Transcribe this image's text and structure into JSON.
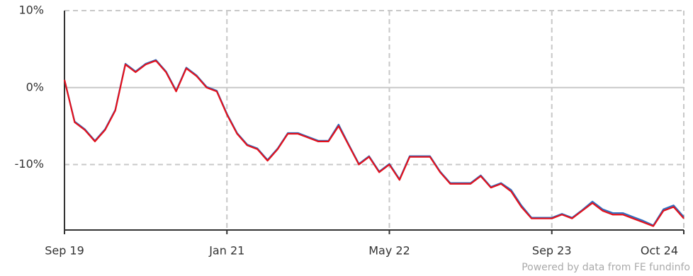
{
  "chart_data": {
    "type": "line",
    "categories": [
      "Sep 19",
      null,
      null,
      null,
      null,
      null,
      null,
      null,
      null,
      null,
      null,
      null,
      null,
      null,
      null,
      null,
      "Jan 21",
      null,
      null,
      null,
      null,
      null,
      null,
      null,
      null,
      null,
      null,
      null,
      null,
      null,
      null,
      null,
      "May 22",
      null,
      null,
      null,
      null,
      null,
      null,
      null,
      null,
      null,
      null,
      null,
      null,
      null,
      null,
      null,
      "Sep 23",
      null,
      null,
      null,
      null,
      null,
      null,
      null,
      null,
      null,
      null,
      null,
      null,
      "Oct 24"
    ],
    "series": [
      {
        "color": "#2f6fc0",
        "values": [
          1,
          -4.4,
          -5.4,
          -6.9,
          -5.4,
          -2.9,
          3.1,
          2.1,
          3.1,
          3.6,
          2.1,
          -0.4,
          2.6,
          1.6,
          0.1,
          -0.4,
          -3.4,
          -5.9,
          -7.4,
          -7.9,
          -9.4,
          -7.9,
          -5.9,
          -5.9,
          -6.4,
          -6.9,
          -6.9,
          -4.8,
          -7.4,
          -9.9,
          -8.9,
          -10.9,
          -9.9,
          -11.9,
          -8.9,
          -8.9,
          -8.9,
          -10.9,
          -12.4,
          -12.4,
          -12.4,
          -11.4,
          -12.9,
          -12.4,
          -13.3,
          -15.3,
          -16.9,
          -16.9,
          -16.9,
          -16.4,
          -16.9,
          -15.9,
          -14.8,
          -15.8,
          -16.3,
          -16.3,
          -16.8,
          -17.3,
          -17.9,
          -15.8,
          -15.3,
          -16.8
        ]
      },
      {
        "color": "#e3101b",
        "values": [
          1,
          -4.5,
          -5.5,
          -7,
          -5.5,
          -3,
          3,
          2,
          3,
          3.5,
          2,
          -0.5,
          2.5,
          1.5,
          0,
          -0.5,
          -3.5,
          -6,
          -7.5,
          -8,
          -9.5,
          -8,
          -6,
          -6,
          -6.5,
          -7,
          -7,
          -5,
          -7.5,
          -10,
          -9,
          -11,
          -10,
          -12,
          -9,
          -9,
          -9,
          -11,
          -12.5,
          -12.5,
          -12.5,
          -11.5,
          -13,
          -12.5,
          -13.5,
          -15.5,
          -17,
          -17,
          -17,
          -16.5,
          -17,
          -16,
          -15,
          -16,
          -16.5,
          -16.5,
          -17,
          -17.5,
          -18,
          -16,
          -15.5,
          -17
        ]
      }
    ],
    "ylim": [
      -18.5,
      10
    ],
    "yticks": [
      {
        "value": 10,
        "label": "10%"
      },
      {
        "value": 0,
        "label": "0%"
      },
      {
        "value": -10,
        "label": "-10%"
      }
    ],
    "grid": true,
    "footer": "Powered by data from FE fundinfo"
  }
}
